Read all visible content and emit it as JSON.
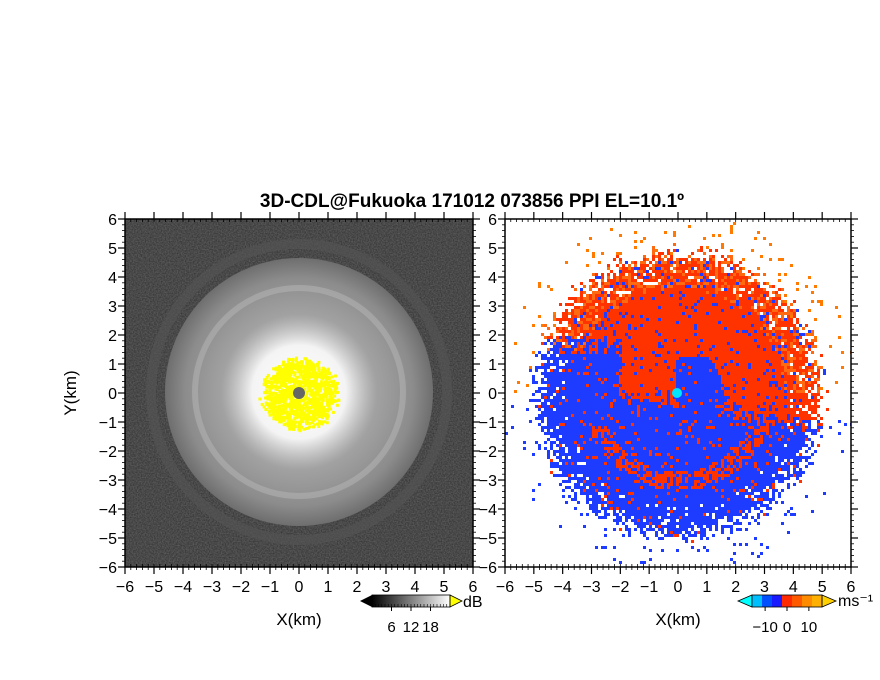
{
  "title": "3D-CDL@Fukuoka 171012 073856 PPI EL=10.1º",
  "chart_data": [
    {
      "type": "heatmap",
      "name": "range-corrected intensity",
      "xlabel": "X(km)",
      "ylabel": "Y(km)",
      "xlim": [
        -6,
        6
      ],
      "ylim": [
        -6,
        6
      ],
      "xticks": [
        "−6",
        "−5",
        "−4",
        "−3",
        "−2",
        "−1",
        "0",
        "1",
        "2",
        "3",
        "4",
        "5",
        "6"
      ],
      "yticks": [
        "6",
        "5",
        "4",
        "3",
        "2",
        "1",
        "0",
        "−1",
        "−2",
        "−3",
        "−4",
        "−5",
        "−6"
      ],
      "colorbar": {
        "unit": "dB",
        "ticks": [
          "6",
          "12",
          "18"
        ],
        "tick_values": [
          6,
          12,
          18
        ],
        "range": [
          0,
          24
        ],
        "colormap": [
          "#000000",
          "#ffffff"
        ],
        "over_color": "#ffff00"
      },
      "features": {
        "saturated_core_color": "#ffff00",
        "core_radius_km": 1.3,
        "bright_halo_radius_km": 2.6,
        "gray_disk_radius_km": 4.6,
        "center_marker_color": "#666666"
      }
    },
    {
      "type": "heatmap",
      "name": "radial velocity",
      "xlabel": "X(km)",
      "ylabel": "",
      "xlim": [
        -6,
        6
      ],
      "ylim": [
        -6,
        6
      ],
      "xticks": [
        "−6",
        "−5",
        "−4",
        "−3",
        "−2",
        "−1",
        "0",
        "1",
        "2",
        "3",
        "4",
        "5",
        "6"
      ],
      "yticks": [
        "6",
        "5",
        "4",
        "3",
        "2",
        "1",
        "0",
        "−1",
        "−2",
        "−3",
        "−4",
        "−5",
        "−6"
      ],
      "colorbar": {
        "unit": "ms⁻¹",
        "ticks": [
          "−10",
          "0",
          "10"
        ],
        "tick_values": [
          -10,
          0,
          10
        ],
        "range": [
          -16,
          16
        ],
        "colors": [
          "#00bfff",
          "#0050ff",
          "#1a1aff",
          "#ff2a00",
          "#ff5a00",
          "#ff8c00",
          "#ffb000"
        ],
        "under_color": "#00ffff",
        "over_color": "#ffd000"
      },
      "features": {
        "positive_color": "#ff3300",
        "negative_color": "#1e3cff",
        "data_radius_km": 4.9,
        "center_marker_color": "#00e5ff"
      }
    }
  ]
}
